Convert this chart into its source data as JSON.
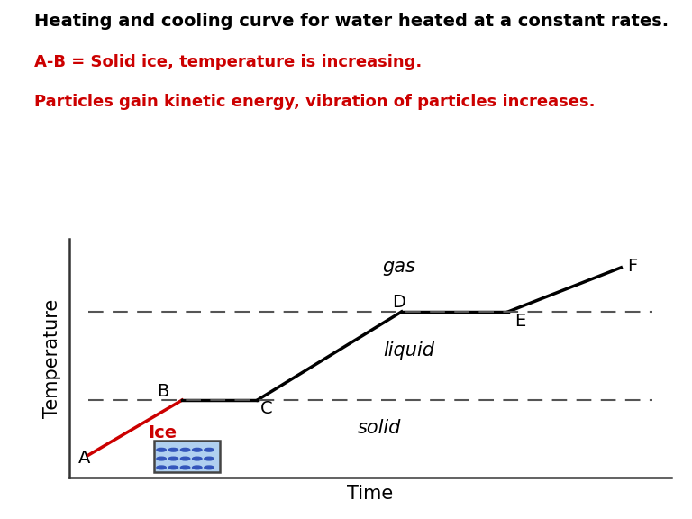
{
  "title": "Heating and cooling curve for water heated at a constant rates.",
  "subtitle1": "A-B = Solid ice, temperature is increasing.",
  "subtitle2": "Particles gain kinetic energy, vibration of particles increases.",
  "title_color": "#000000",
  "subtitle_color": "#cc0000",
  "xlabel": "Time",
  "ylabel": "Temperature",
  "bg_color": "#ffffff",
  "points": {
    "A": [
      0.5,
      1.0
    ],
    "B": [
      2.0,
      3.5
    ],
    "C": [
      3.2,
      3.5
    ],
    "D": [
      5.5,
      7.5
    ],
    "E": [
      7.2,
      7.5
    ],
    "F": [
      9.0,
      9.5
    ]
  },
  "curve_color": "#000000",
  "ab_color": "#cc0000",
  "dashed_color": "#555555",
  "dashed_y_low": 3.5,
  "dashed_y_high": 7.5,
  "dashed_x_start": 0.5,
  "dashed_x_end": 9.5,
  "label_gas": "gas",
  "label_liquid": "liquid",
  "label_solid": "solid",
  "label_ice": "Ice",
  "label_fontsize": 14,
  "axis_label_fontsize": 13,
  "title_fontsize": 14,
  "subtitle_fontsize": 13,
  "xlim": [
    0.2,
    9.8
  ],
  "ylim": [
    0.0,
    10.8
  ]
}
